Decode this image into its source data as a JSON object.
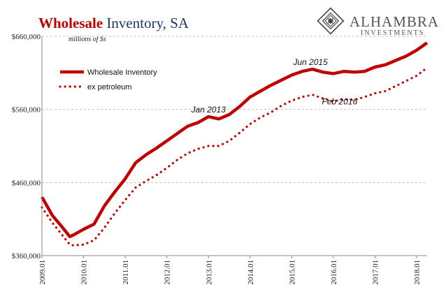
{
  "chart_data": {
    "type": "line",
    "title_bold": "Wholesale",
    "title_rest": " Inventory, SA",
    "units_label": "millions of $s",
    "ylim": [
      360000,
      660000
    ],
    "yticks": [
      {
        "value": 360000,
        "label": "$360,000"
      },
      {
        "value": 460000,
        "label": "$460,000"
      },
      {
        "value": 560000,
        "label": "$560,000"
      },
      {
        "value": 660000,
        "label": "$660,000"
      }
    ],
    "xlim": [
      2009.0,
      2018.25
    ],
    "xticks": [
      {
        "value": 2009.0,
        "label": "2009.01"
      },
      {
        "value": 2010.0,
        "label": "2010.01"
      },
      {
        "value": 2011.0,
        "label": "2011.01"
      },
      {
        "value": 2012.0,
        "label": "2012.01"
      },
      {
        "value": 2013.0,
        "label": "2013.01"
      },
      {
        "value": 2014.0,
        "label": "2014.01"
      },
      {
        "value": 2015.0,
        "label": "2015.01"
      },
      {
        "value": 2016.0,
        "label": "2016.01"
      },
      {
        "value": 2017.0,
        "label": "2017.01"
      },
      {
        "value": 2018.0,
        "label": "2018.01"
      }
    ],
    "series": [
      {
        "name": "Wholesale Inventory",
        "style": "solid",
        "color": "#c00000",
        "x": [
          2009.0,
          2009.25,
          2009.5,
          2009.67,
          2009.75,
          2010.0,
          2010.25,
          2010.5,
          2010.75,
          2011.0,
          2011.25,
          2011.5,
          2011.75,
          2012.0,
          2012.25,
          2012.5,
          2012.75,
          2013.0,
          2013.25,
          2013.5,
          2013.75,
          2014.0,
          2014.25,
          2014.5,
          2014.75,
          2015.0,
          2015.25,
          2015.5,
          2015.75,
          2016.0,
          2016.25,
          2016.5,
          2016.75,
          2017.0,
          2017.25,
          2017.5,
          2017.75,
          2018.0,
          2018.25
        ],
        "values": [
          440000,
          415000,
          398000,
          386000,
          388000,
          396000,
          403000,
          428000,
          447000,
          465000,
          487000,
          498000,
          507000,
          517000,
          527000,
          537000,
          542000,
          550000,
          547000,
          553000,
          564000,
          577000,
          585000,
          593000,
          600000,
          607000,
          612000,
          615000,
          611000,
          609000,
          612000,
          611000,
          612000,
          618000,
          621000,
          627000,
          633000,
          641000,
          651000
        ]
      },
      {
        "name": "ex petroleum",
        "style": "dotted",
        "color": "#c00000",
        "x": [
          2009.0,
          2009.25,
          2009.5,
          2009.67,
          2009.75,
          2010.0,
          2010.25,
          2010.5,
          2010.75,
          2011.0,
          2011.25,
          2011.5,
          2011.75,
          2012.0,
          2012.25,
          2012.5,
          2012.75,
          2013.0,
          2013.25,
          2013.5,
          2013.75,
          2014.0,
          2014.25,
          2014.5,
          2014.75,
          2015.0,
          2015.25,
          2015.5,
          2015.75,
          2016.0,
          2016.25,
          2016.5,
          2016.75,
          2017.0,
          2017.25,
          2017.5,
          2017.75,
          2018.0,
          2018.25
        ],
        "values": [
          426000,
          405000,
          387000,
          375000,
          374000,
          375000,
          381000,
          398000,
          418000,
          436000,
          453000,
          462000,
          470000,
          480000,
          491000,
          500000,
          506000,
          510000,
          510000,
          517000,
          528000,
          540000,
          549000,
          556000,
          565000,
          572000,
          577000,
          580000,
          575000,
          571000,
          574000,
          573000,
          577000,
          582000,
          585000,
          592000,
          599000,
          606000,
          617000
        ]
      }
    ],
    "legend": [
      {
        "label": "Wholesale Inventory",
        "style": "solid"
      },
      {
        "label": "ex petroleum",
        "style": "dotted"
      }
    ],
    "annotations": [
      {
        "text": "Jan 2013",
        "x": 2013.0,
        "y": 556000
      },
      {
        "text": "Jun 2015",
        "x": 2015.45,
        "y": 621000
      },
      {
        "text": "Feb 2016",
        "x": 2016.15,
        "y": 567000
      }
    ]
  },
  "logo": {
    "main": "ALHAMBRA",
    "sub": "INVESTMENTS"
  }
}
